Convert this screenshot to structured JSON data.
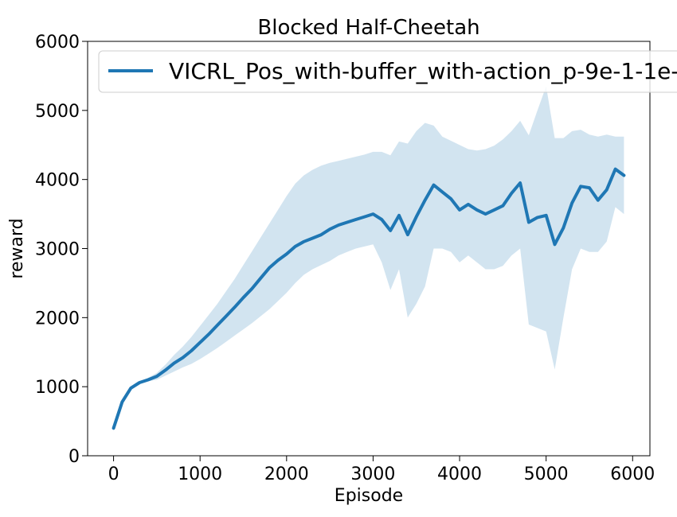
{
  "chart_data": {
    "type": "line",
    "title": "Blocked Half-Cheetah",
    "xlabel": "Episode",
    "ylabel": "reward",
    "xlim": [
      -300,
      6200
    ],
    "ylim": [
      0,
      6000
    ],
    "xticks": [
      0,
      1000,
      2000,
      3000,
      4000,
      5000,
      6000
    ],
    "yticks": [
      0,
      1000,
      2000,
      3000,
      4000,
      5000,
      6000
    ],
    "grid": false,
    "legend_position": "top-right",
    "series": [
      {
        "name": "VICRL_Pos_with-buffer_with-action_p-9e-1-1e-",
        "color": "#1f77b4",
        "band_color": "#1f77b4",
        "band_opacity": 0.2,
        "x": [
          0,
          100,
          200,
          300,
          400,
          500,
          600,
          700,
          800,
          900,
          1000,
          1100,
          1200,
          1300,
          1400,
          1500,
          1600,
          1700,
          1800,
          1900,
          2000,
          2100,
          2200,
          2300,
          2400,
          2500,
          2600,
          2700,
          2800,
          2900,
          3000,
          3100,
          3200,
          3300,
          3400,
          3500,
          3600,
          3700,
          3800,
          3900,
          4000,
          4100,
          4200,
          4300,
          4400,
          4500,
          4600,
          4700,
          4800,
          4900,
          5000,
          5100,
          5200,
          5300,
          5400,
          5500,
          5600,
          5700,
          5800,
          5900
        ],
        "mean": [
          400,
          780,
          980,
          1060,
          1100,
          1150,
          1240,
          1340,
          1420,
          1520,
          1640,
          1760,
          1890,
          2020,
          2150,
          2290,
          2420,
          2570,
          2720,
          2830,
          2920,
          3030,
          3100,
          3150,
          3200,
          3280,
          3340,
          3380,
          3420,
          3460,
          3500,
          3420,
          3260,
          3480,
          3200,
          3460,
          3700,
          3920,
          3820,
          3720,
          3560,
          3640,
          3560,
          3500,
          3560,
          3620,
          3800,
          3950,
          3380,
          3450,
          3480,
          3060,
          3300,
          3660,
          3900,
          3880,
          3700,
          3850,
          4150,
          4060
        ],
        "upper": [
          410,
          800,
          1000,
          1080,
          1130,
          1200,
          1320,
          1460,
          1580,
          1720,
          1880,
          2040,
          2200,
          2380,
          2560,
          2760,
          2960,
          3160,
          3360,
          3560,
          3760,
          3940,
          4060,
          4140,
          4200,
          4240,
          4270,
          4300,
          4330,
          4360,
          4400,
          4400,
          4350,
          4550,
          4520,
          4700,
          4820,
          4780,
          4620,
          4560,
          4500,
          4440,
          4420,
          4440,
          4490,
          4580,
          4700,
          4850,
          4640,
          5000,
          5350,
          4600,
          4600,
          4700,
          4720,
          4650,
          4620,
          4650,
          4620,
          4620
        ],
        "lower": [
          390,
          760,
          960,
          1040,
          1080,
          1100,
          1160,
          1220,
          1280,
          1330,
          1400,
          1480,
          1560,
          1650,
          1740,
          1830,
          1920,
          2020,
          2120,
          2240,
          2360,
          2500,
          2620,
          2700,
          2760,
          2820,
          2900,
          2950,
          3000,
          3030,
          3060,
          2800,
          2400,
          2700,
          2000,
          2200,
          2450,
          3000,
          3000,
          2950,
          2800,
          2900,
          2800,
          2700,
          2700,
          2750,
          2900,
          3000,
          1900,
          1850,
          1800,
          1250,
          2000,
          2700,
          3000,
          2950,
          2950,
          3100,
          3600,
          3500
        ]
      }
    ]
  }
}
